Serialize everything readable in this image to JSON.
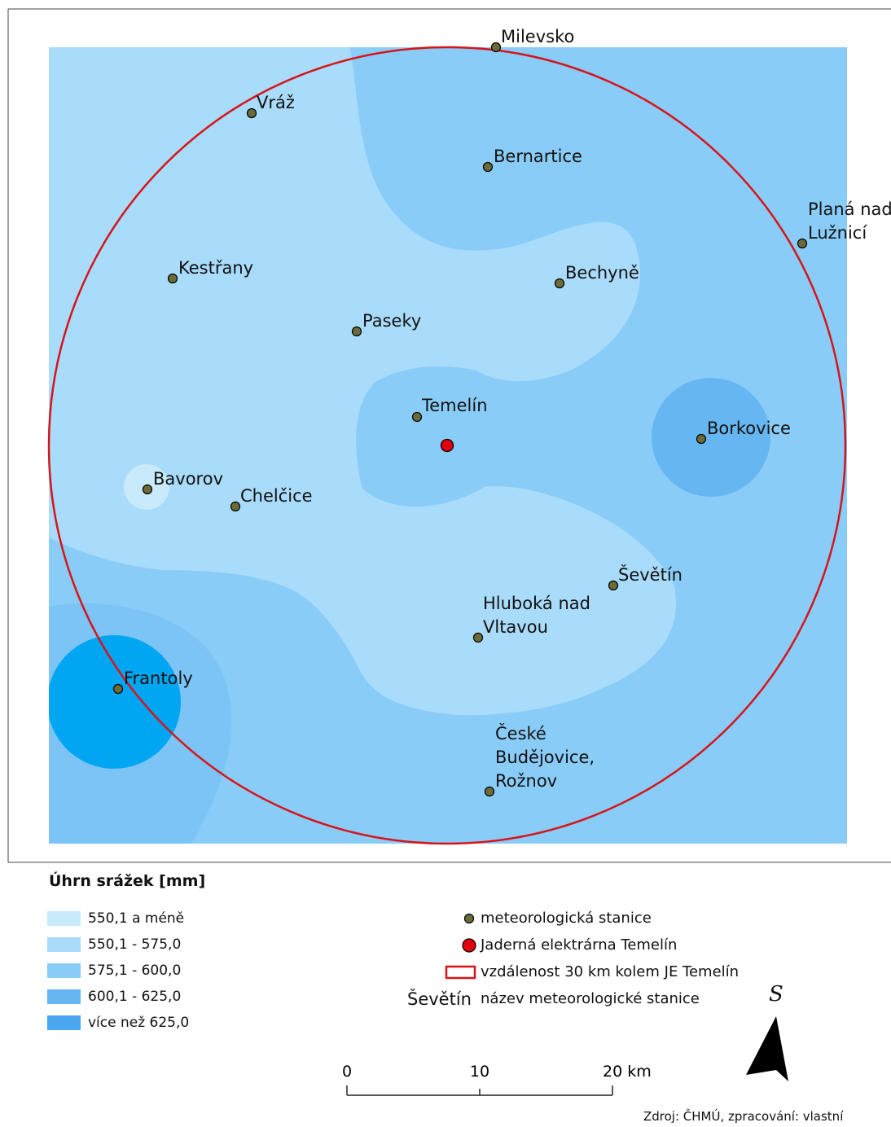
{
  "legend": {
    "title": "Úhrn srážek [mm]",
    "classes": [
      {
        "label": "550,1 a méně",
        "color": "#c8eafb"
      },
      {
        "label": "550,1 - 575,0",
        "color": "#a9dbfa"
      },
      {
        "label": "575,1 - 600,0",
        "color": "#8accf8"
      },
      {
        "label": "600,1 - 625,0",
        "color": "#66b6f2"
      },
      {
        "label": "více než 625,0",
        "color": "#4aa6ef"
      }
    ]
  },
  "symbols": {
    "station": "meteorologická stanice",
    "plant": "Jaderná elektrárna Temelín",
    "buffer": "vzdálenost 30 km kolem JE Temelín",
    "name_example": "Ševětín",
    "name_label": "název meteorologické stanice"
  },
  "stations": [
    {
      "name": "Milevsko"
    },
    {
      "name": "Vráž"
    },
    {
      "name": "Bernartice"
    },
    {
      "name": "Planá nad Lužnicí",
      "lines": [
        "Planá nad",
        "Lužnicí"
      ]
    },
    {
      "name": "Kestřany"
    },
    {
      "name": "Bechyně"
    },
    {
      "name": "Paseky"
    },
    {
      "name": "Temelín"
    },
    {
      "name": "Borkovice"
    },
    {
      "name": "Bavorov"
    },
    {
      "name": "Chelčice"
    },
    {
      "name": "Ševětín"
    },
    {
      "name": "Hluboká nad Vltavou",
      "lines": [
        "Hluboká nad",
        "Vltavou"
      ]
    },
    {
      "name": "Frantoly"
    },
    {
      "name": "České Budějovice, Rožnov",
      "lines": [
        "České",
        "Budějovice,",
        "Rožnov"
      ]
    }
  ],
  "scale_bar": {
    "labels": [
      "0",
      "10",
      "20 km"
    ]
  },
  "north_arrow": {
    "letter": "S",
    "icon": "north-arrow-icon"
  },
  "source": "Zdroj: ČHMÚ, zpracování: vlastní",
  "colors": {
    "buffer": "#d7141a",
    "station_fill": "#6b6b3a",
    "plant_fill": "#e3000f",
    "map_frame": "#333333"
  }
}
